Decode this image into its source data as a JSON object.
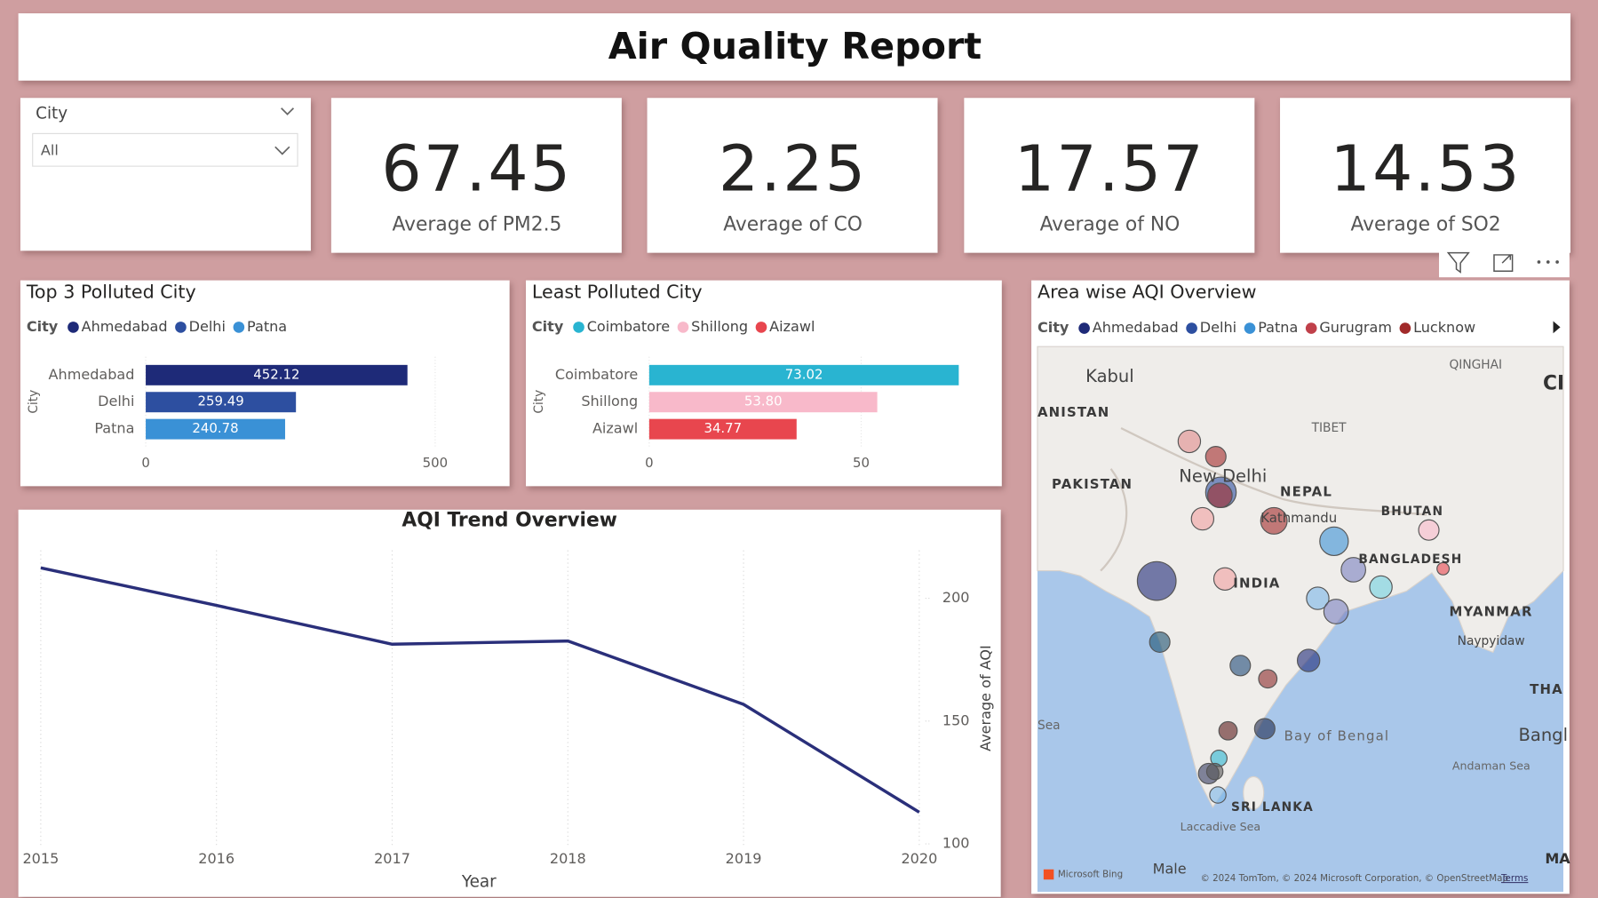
{
  "header": {
    "title": "Air Quality Report"
  },
  "slicer": {
    "label": "City",
    "value": "All"
  },
  "cards": [
    {
      "value": 67.45,
      "label": "Average of PM2.5"
    },
    {
      "value": 2.25,
      "label": "Average of CO"
    },
    {
      "value": 17.57,
      "label": "Average of NO"
    },
    {
      "value": 14.53,
      "label": "Average of SO2"
    }
  ],
  "chart_data": [
    {
      "type": "hbar",
      "title": "Top 3 Polluted City",
      "legend_title": "City",
      "y_label": "City",
      "categories": [
        "Ahmedabad",
        "Delhi",
        "Patna"
      ],
      "values": [
        452.12,
        259.49,
        240.78
      ],
      "colors": [
        "#1e2a78",
        "#2d4fa0",
        "#3a91d6"
      ],
      "xlim": [
        0,
        550
      ],
      "xticks": [
        0,
        500
      ],
      "grid": true
    },
    {
      "type": "hbar",
      "title": "Least Polluted City",
      "legend_title": "City",
      "y_label": "City",
      "categories": [
        "Coimbatore",
        "Shillong",
        "Aizawl"
      ],
      "values": [
        73.02,
        53.8,
        34.77
      ],
      "value_labels": [
        "73.02",
        "53.80",
        "34.77"
      ],
      "colors": [
        "#29b4d1",
        "#f8b9ca",
        "#e8464e"
      ],
      "xlim": [
        0,
        80
      ],
      "xticks": [
        0,
        50
      ],
      "grid": true
    },
    {
      "type": "line",
      "title": "AQI Trend Overview",
      "x_label": "Year",
      "y_label": "Average of AQI",
      "x": [
        2015,
        2016,
        2017,
        2018,
        2019,
        2020
      ],
      "values": [
        212.4,
        197.1,
        181.3,
        182.6,
        156.8,
        112.9
      ],
      "color": "#2a2f7a",
      "xlim": [
        2015,
        2020
      ],
      "xticks": [
        2015,
        2016,
        2017,
        2018,
        2019,
        2020
      ],
      "ylim": [
        100,
        217
      ],
      "yticks": [
        100,
        150,
        200
      ],
      "y_axis_side": "right",
      "grid": true
    },
    {
      "type": "map",
      "title": "Area wise AQI Overview",
      "legend_title": "City",
      "legend": [
        "Ahmedabad",
        "Delhi",
        "Patna",
        "Gurugram",
        "Lucknow"
      ],
      "legend_colors": [
        "#1e2a78",
        "#2d4fa0",
        "#3a91d6",
        "#c0404a",
        "#a12a2a"
      ],
      "place_labels": [
        "Kabul",
        "ANISTAN",
        "PAKISTAN",
        "New Delhi",
        "NEPAL",
        "Kathmandu",
        "TIBET",
        "QINGHAI",
        "CI",
        "BHUTAN",
        "BANGLADESH",
        "INDIA",
        "MYANMAR",
        "Naypyidaw",
        "THA",
        "Bangl",
        "Andaman Sea",
        "Bay of Bengal",
        "Sea",
        "SRI LANKA",
        "Laccadive Sea",
        "Male",
        "MA"
      ],
      "attribution": [
        "Microsoft Bing",
        "© 2024 TomTom, © 2024 Microsoft Corporation, © OpenStreetMap",
        "Terms"
      ]
    }
  ]
}
